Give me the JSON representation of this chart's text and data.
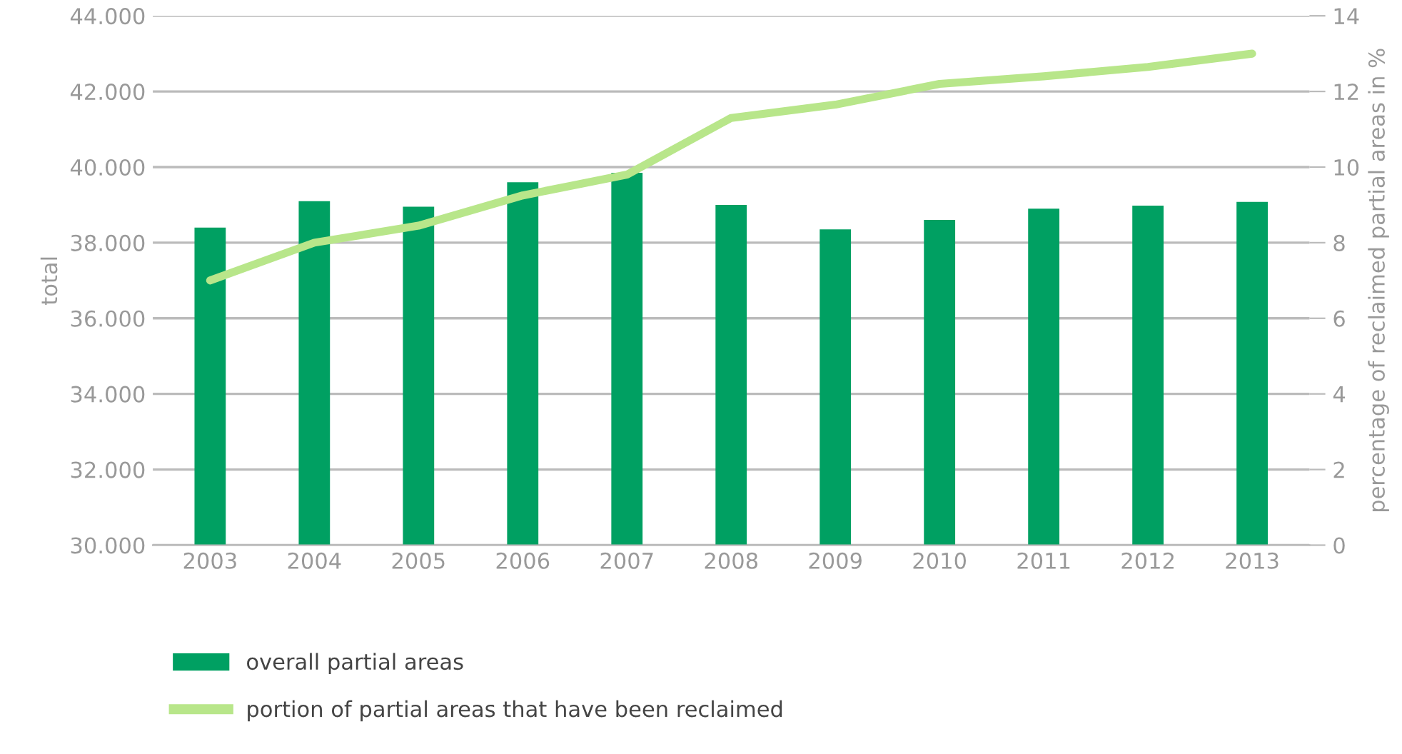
{
  "chart_data": {
    "type": "bar",
    "ylabel": "total",
    "y2label": "percentage of reclaimed partial areas in %",
    "categories": [
      "2003",
      "2004",
      "2005",
      "2006",
      "2007",
      "2008",
      "2009",
      "2010",
      "2011",
      "2012",
      "2013"
    ],
    "series": [
      {
        "name": "overall partial areas",
        "color": "#00a062",
        "values": [
          38400,
          39100,
          38950,
          39600,
          39850,
          39000,
          38350,
          38600,
          38900,
          38980,
          39080
        ]
      },
      {
        "name": "portion of partial areas that have been reclaimed",
        "type": "line",
        "axis": "y2",
        "color": "#b8e68a",
        "values": [
          7.0,
          8.0,
          8.45,
          9.25,
          9.8,
          11.3,
          11.65,
          12.2,
          12.4,
          12.65,
          13.0
        ]
      }
    ],
    "ylim": [
      30000,
      44000
    ],
    "yticks": [
      {
        "value": 30000,
        "label": "30.000"
      },
      {
        "value": 32000,
        "label": "32.000"
      },
      {
        "value": 34000,
        "label": "34.000"
      },
      {
        "value": 36000,
        "label": "36.000"
      },
      {
        "value": 38000,
        "label": "38.000"
      },
      {
        "value": 40000,
        "label": "40.000"
      },
      {
        "value": 42000,
        "label": "42.000"
      },
      {
        "value": 44000,
        "label": "44.000"
      }
    ],
    "y2lim": [
      0,
      14
    ],
    "y2ticks": [
      0,
      2,
      4,
      6,
      8,
      10,
      12,
      14
    ],
    "grid": "y",
    "legend": "bottom left",
    "marker": "none",
    "line_style": "solid"
  }
}
